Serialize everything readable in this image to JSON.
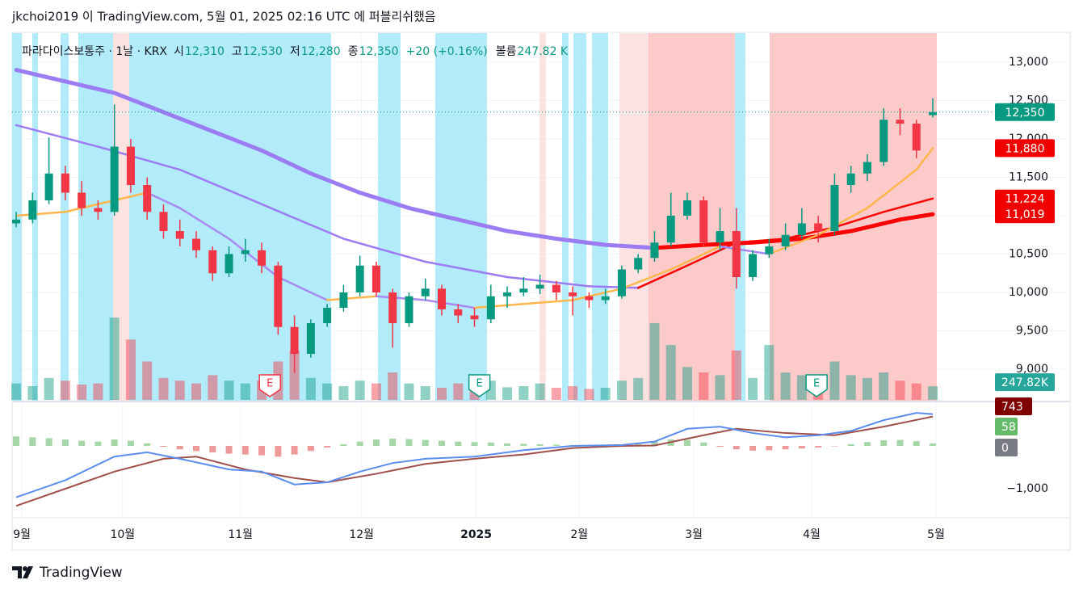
{
  "header": {
    "title": "jkchoi2019 이 TradingView.com, 5월 01, 2025 02:16 UTC 에 퍼블리쉬했음"
  },
  "footer": {
    "brand": "TradingView"
  },
  "legend": {
    "symbol": "파라다이스보통주 · 1날 · KRX",
    "items": [
      {
        "label": "시",
        "value": "12,310"
      },
      {
        "label": "고",
        "value": "12,530"
      },
      {
        "label": "저",
        "value": "12,280"
      },
      {
        "label": "종",
        "value": "12,350"
      }
    ],
    "change": "+20 (+0.16%)",
    "volume_label": "볼륨",
    "volume": "247.82 K"
  },
  "chart_data": {
    "type": "candlestick",
    "up_color": "#089981",
    "down_color": "#f23645",
    "xlim": [
      -0.25,
      59.7
    ],
    "xticks": [
      {
        "value": 0.35,
        "label": "9월"
      },
      {
        "value": 6.5,
        "label": "10월"
      },
      {
        "value": 13.7,
        "label": "11월"
      },
      {
        "value": 21.1,
        "label": "12월"
      },
      {
        "value": 28.1,
        "label": "2025"
      },
      {
        "value": 34.4,
        "label": "2월"
      },
      {
        "value": 41.4,
        "label": "3월"
      },
      {
        "value": 48.6,
        "label": "4월"
      },
      {
        "value": 56.2,
        "label": "5월"
      }
    ],
    "ylim": [
      8600,
      13390
    ],
    "yticks": [
      {
        "value": 9000,
        "label": "9,000"
      },
      {
        "value": 9500,
        "label": "9,500"
      },
      {
        "value": 10000,
        "label": "10,000"
      },
      {
        "value": 10500,
        "label": "10,500"
      },
      {
        "value": 11000,
        "label": "11,000"
      },
      {
        "value": 11500,
        "label": "11,500"
      },
      {
        "value": 12000,
        "label": "12,000"
      },
      {
        "value": 12500,
        "label": "12,500"
      },
      {
        "value": 13000,
        "label": "13,000"
      }
    ],
    "grid": true,
    "candles": [
      [
        10900,
        11050,
        10850,
        10950
      ],
      [
        10950,
        11300,
        10900,
        11200
      ],
      [
        11200,
        12020,
        11150,
        11550
      ],
      [
        11550,
        11650,
        11200,
        11300
      ],
      [
        11300,
        11450,
        11000,
        11100
      ],
      [
        11100,
        11200,
        10950,
        11050
      ],
      [
        11050,
        12450,
        11000,
        11900
      ],
      [
        11900,
        12000,
        11300,
        11400
      ],
      [
        11400,
        11500,
        10950,
        11050
      ],
      [
        11050,
        11150,
        10700,
        10800
      ],
      [
        10800,
        10950,
        10600,
        10700
      ],
      [
        10700,
        10800,
        10450,
        10550
      ],
      [
        10550,
        10600,
        10150,
        10250
      ],
      [
        10250,
        10600,
        10200,
        10500
      ],
      [
        10500,
        10700,
        10400,
        10550
      ],
      [
        10550,
        10650,
        10250,
        10350
      ],
      [
        10350,
        10400,
        9450,
        9550
      ],
      [
        9550,
        9700,
        8950,
        9200
      ],
      [
        9200,
        9650,
        9150,
        9600
      ],
      [
        9600,
        9850,
        9550,
        9800
      ],
      [
        9800,
        10100,
        9750,
        10000
      ],
      [
        10000,
        10480,
        9950,
        10350
      ],
      [
        10350,
        10400,
        9950,
        10000
      ],
      [
        10000,
        10050,
        9280,
        9600
      ],
      [
        9600,
        10000,
        9550,
        9950
      ],
      [
        9950,
        10180,
        9900,
        10050
      ],
      [
        10050,
        10100,
        9700,
        9780
      ],
      [
        9780,
        9850,
        9600,
        9700
      ],
      [
        9700,
        9800,
        9550,
        9650
      ],
      [
        9650,
        10100,
        9600,
        9950
      ],
      [
        9950,
        10080,
        9800,
        10000
      ],
      [
        10000,
        10200,
        9950,
        10050
      ],
      [
        10050,
        10230,
        9980,
        10100
      ],
      [
        10100,
        10150,
        9900,
        10000
      ],
      [
        10000,
        10080,
        9700,
        9950
      ],
      [
        9950,
        10000,
        9800,
        9900
      ],
      [
        9900,
        10050,
        9850,
        9950
      ],
      [
        9950,
        10350,
        9920,
        10300
      ],
      [
        10300,
        10500,
        10250,
        10450
      ],
      [
        10450,
        10800,
        10400,
        10650
      ],
      [
        10650,
        11300,
        10600,
        11000
      ],
      [
        11000,
        11300,
        10950,
        11200
      ],
      [
        11200,
        11250,
        10600,
        10650
      ],
      [
        10650,
        11100,
        10550,
        10800
      ],
      [
        10800,
        11100,
        10050,
        10200
      ],
      [
        10200,
        10550,
        10150,
        10500
      ],
      [
        10500,
        10700,
        10450,
        10600
      ],
      [
        10600,
        10900,
        10550,
        10750
      ],
      [
        10750,
        11100,
        10700,
        10900
      ],
      [
        10900,
        11000,
        10650,
        10800
      ],
      [
        10800,
        11550,
        10750,
        11400
      ],
      [
        11400,
        11650,
        11300,
        11550
      ],
      [
        11550,
        11800,
        11450,
        11700
      ],
      [
        11700,
        12400,
        11650,
        12250
      ],
      [
        12250,
        12400,
        12050,
        12200
      ],
      [
        12200,
        12250,
        11750,
        11850
      ],
      [
        12310,
        12530,
        12280,
        12350
      ]
    ],
    "volume_ylim": [
      0,
      6700000
    ],
    "volume": [
      300000,
      250000,
      400000,
      350000,
      280000,
      300000,
      1500000,
      1100000,
      700000,
      400000,
      350000,
      300000,
      450000,
      350000,
      300000,
      350000,
      700000,
      900000,
      400000,
      300000,
      250000,
      350000,
      300000,
      500000,
      300000,
      250000,
      220000,
      300000,
      250000,
      350000,
      230000,
      250000,
      300000,
      220000,
      250000,
      200000,
      220000,
      350000,
      400000,
      1400000,
      1000000,
      600000,
      500000,
      450000,
      900000,
      400000,
      1000000,
      500000,
      450000,
      350000,
      700000,
      450000,
      400000,
      500000,
      350000,
      300000,
      247820
    ],
    "moving_averages": [
      {
        "x": [
          0,
          3,
          6,
          9,
          12,
          15,
          18,
          21,
          24,
          27,
          30,
          33,
          36,
          39,
          42,
          45,
          48,
          51,
          54,
          56
        ],
        "values": [
          12900,
          12750,
          12600,
          12350,
          12100,
          11850,
          11550,
          11300,
          11100,
          10950,
          10800,
          10700,
          10620,
          10580,
          10620,
          10650,
          10700,
          10800,
          10950,
          11019
        ],
        "falling_color": "#9b7cf2",
        "rising_color": "#ff0000",
        "width": 5
      },
      {
        "x": [
          0,
          5,
          10,
          15,
          20,
          25,
          30,
          35,
          38,
          41,
          44,
          47,
          50,
          53,
          56
        ],
        "values": [
          12180,
          11900,
          11600,
          11150,
          10700,
          10400,
          10200,
          10080,
          10060,
          10350,
          10650,
          10700,
          10850,
          11050,
          11224
        ],
        "falling_color": "#9b7cf2",
        "rising_color": "#ff0000",
        "width": 2.5
      },
      {
        "x": [
          0,
          3,
          6,
          8,
          10,
          13,
          16,
          19,
          22,
          25,
          28,
          31,
          34,
          37,
          40,
          43,
          46,
          49,
          52,
          55,
          56
        ],
        "values": [
          11000,
          11050,
          11200,
          11300,
          11100,
          10700,
          10200,
          9900,
          9950,
          9900,
          9800,
          9850,
          9900,
          10050,
          10300,
          10600,
          10500,
          10750,
          11100,
          11600,
          11880
        ],
        "falling_color": "#a98af3",
        "rising_color": "#ffb74d",
        "width": 2.5
      }
    ],
    "price_tags": [
      {
        "value": 12350,
        "label": "12,350",
        "color": "#089981"
      },
      {
        "value": 11880,
        "label": "11,880",
        "color": "#f20000"
      },
      {
        "value": 11224,
        "label": "11,224",
        "color": "#f20000"
      },
      {
        "value": 11019,
        "label": "11,019",
        "color": "#f20000"
      }
    ],
    "volume_tag": {
      "value": 247820,
      "label": "247.82K",
      "color": "#26a69a"
    },
    "events": [
      {
        "x": 15.5,
        "label": "E",
        "color": "#f23645"
      },
      {
        "x": 28.3,
        "label": "E",
        "color": "#089981"
      },
      {
        "x": 48.9,
        "label": "E",
        "color": "#089981"
      }
    ],
    "macd": {
      "ylim": [
        -1660,
        980
      ],
      "yticks": [
        {
          "value": -1000,
          "label": "−1,000"
        }
      ],
      "macd_color": "#5b8def",
      "signal_color": "#a0504a",
      "macd": {
        "x": [
          0,
          3,
          6,
          8,
          10,
          13,
          15,
          17,
          19,
          21,
          23,
          25,
          28,
          31,
          34,
          37,
          39,
          41,
          43,
          45,
          47,
          49,
          51,
          53,
          55,
          56
        ],
        "values": [
          -1200,
          -800,
          -250,
          -150,
          -300,
          -550,
          -600,
          -900,
          -850,
          -600,
          -400,
          -300,
          -250,
          -100,
          0,
          20,
          100,
          400,
          450,
          300,
          200,
          250,
          350,
          600,
          770,
          743
        ]
      },
      "signal": {
        "x": [
          0,
          3,
          6,
          9,
          11,
          14,
          17,
          19,
          22,
          25,
          28,
          31,
          34,
          37,
          39,
          42,
          44,
          47,
          50,
          53,
          56
        ],
        "values": [
          -1400,
          -1000,
          -600,
          -300,
          -250,
          -550,
          -750,
          -850,
          -650,
          -420,
          -300,
          -200,
          -50,
          0,
          10,
          250,
          400,
          300,
          250,
          450,
          685
        ]
      },
      "histogram": [
        220,
        200,
        180,
        150,
        120,
        100,
        150,
        120,
        60,
        -20,
        -80,
        -120,
        -150,
        -180,
        -200,
        -220,
        -250,
        -200,
        -120,
        -40,
        40,
        100,
        150,
        170,
        160,
        140,
        120,
        100,
        90,
        80,
        60,
        50,
        40,
        30,
        20,
        10,
        10,
        20,
        60,
        110,
        150,
        140,
        80,
        -20,
        -80,
        -110,
        -100,
        -80,
        -60,
        -40,
        -10,
        40,
        90,
        130,
        140,
        110,
        58
      ],
      "hist_up_color": "#a5d6a7",
      "hist_down_color": "#ef9a9a",
      "tags": [
        {
          "value": 743,
          "label": "743",
          "color": "#800000"
        },
        {
          "value": 58,
          "label": "58",
          "color": "#66bb6a"
        },
        {
          "value": 0,
          "label": "0",
          "color": "#787b86"
        }
      ]
    }
  }
}
